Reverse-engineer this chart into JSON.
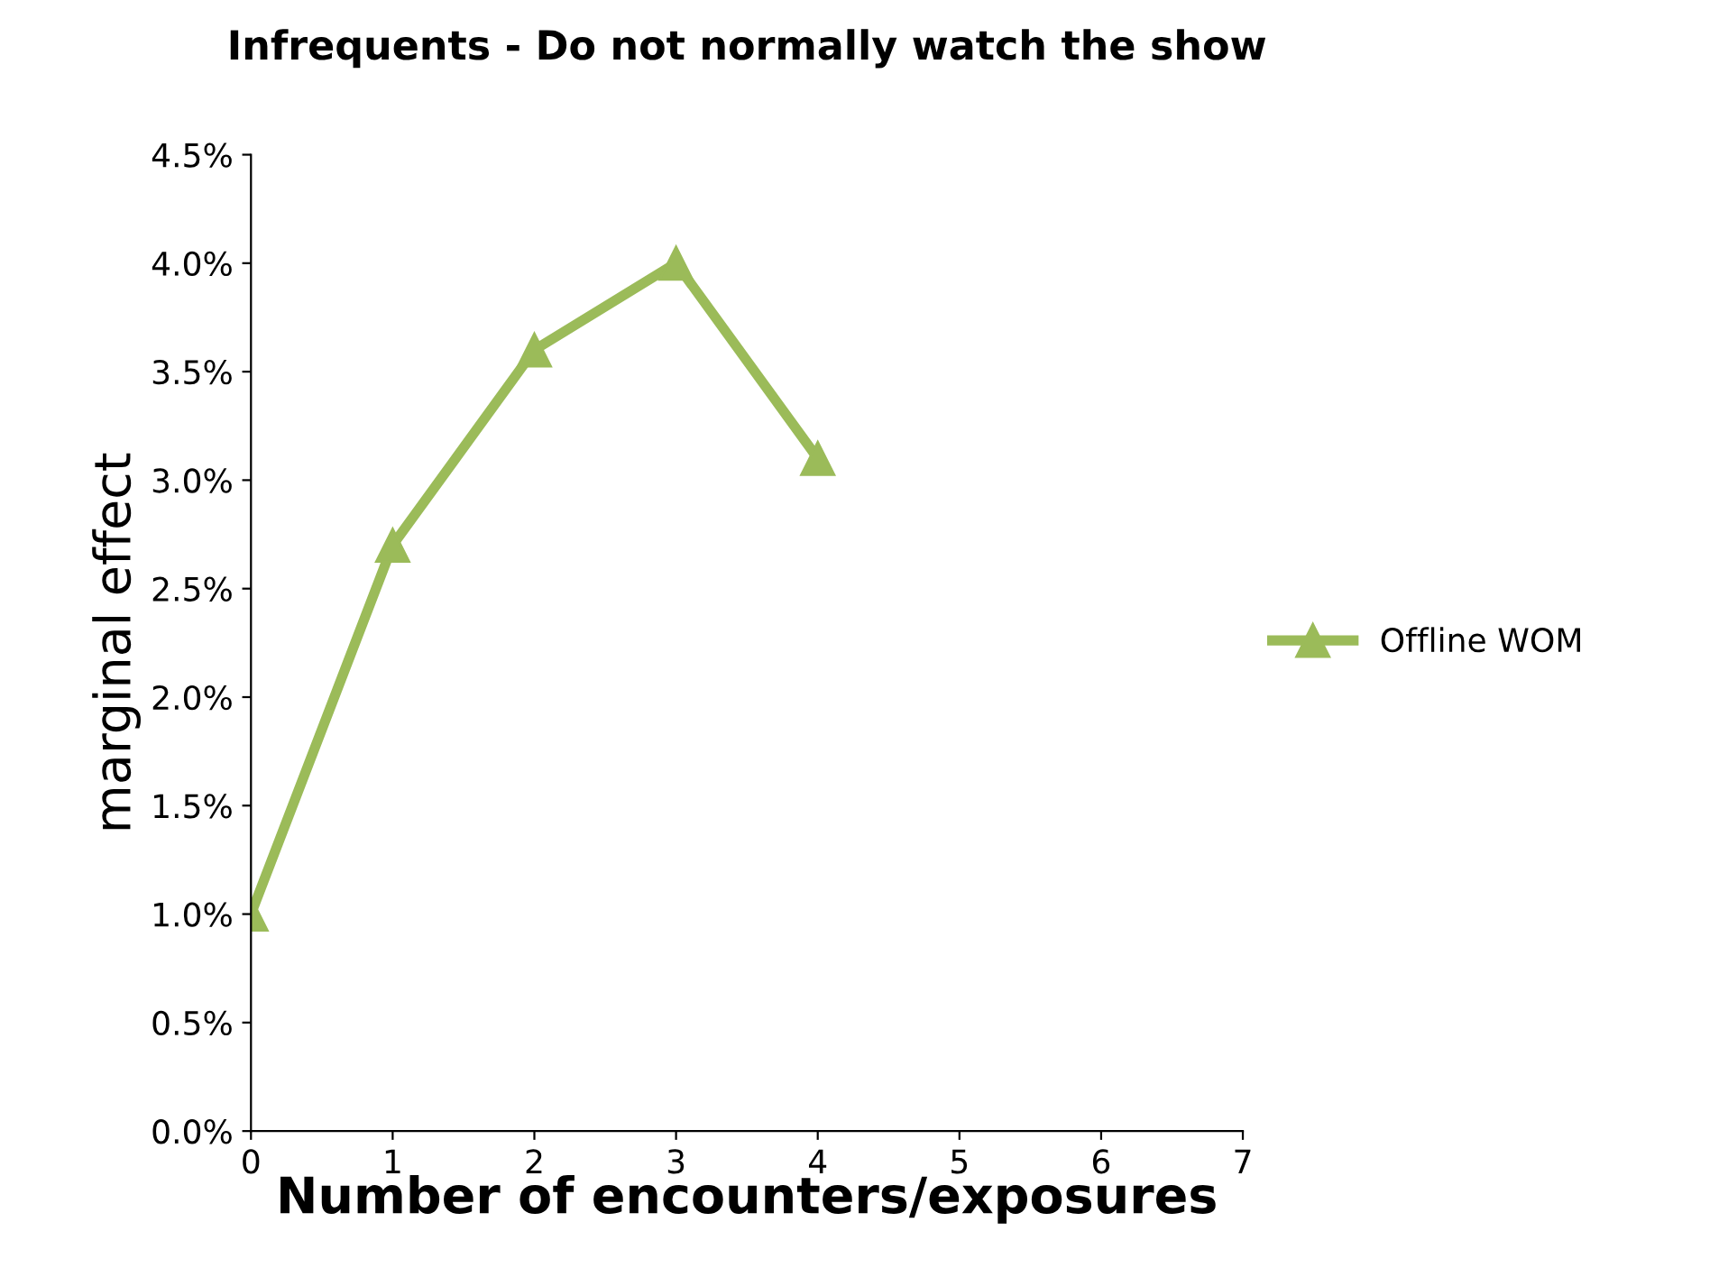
{
  "chart_data": {
    "type": "line",
    "title": "Infrequents - Do not normally watch the show",
    "xlabel": "Number of encounters/exposures",
    "ylabel": "marginal effect",
    "x": [
      0,
      1,
      2,
      3,
      4
    ],
    "series": [
      {
        "name": "Offline WOM",
        "color": "#9bbb59",
        "values": [
          1.0,
          2.7,
          3.6,
          4.0,
          3.1
        ]
      }
    ],
    "xlim": [
      0,
      7
    ],
    "xticks": [
      0,
      1,
      2,
      3,
      4,
      5,
      6,
      7
    ],
    "ylim": [
      0,
      4.5
    ],
    "yticks": [
      {
        "value": 0,
        "label": "0.0%"
      },
      {
        "value": 0.5,
        "label": "0.5%"
      },
      {
        "value": 1.0,
        "label": "1.0%"
      },
      {
        "value": 1.5,
        "label": "1.5%"
      },
      {
        "value": 2.0,
        "label": "2.0%"
      },
      {
        "value": 2.5,
        "label": "2.5%"
      },
      {
        "value": 3.0,
        "label": "3.0%"
      },
      {
        "value": 3.5,
        "label": "3.5%"
      },
      {
        "value": 4.0,
        "label": "4.0%"
      },
      {
        "value": 4.5,
        "label": "4.5%"
      }
    ],
    "grid": false,
    "legend": "right",
    "marker": "triangle",
    "line_style": "solid"
  }
}
